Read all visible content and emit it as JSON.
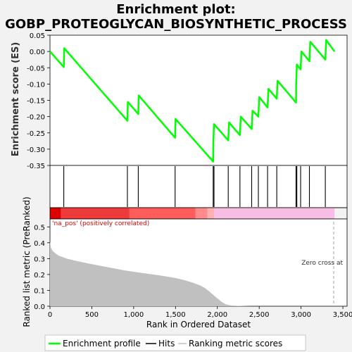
{
  "chart_data": {
    "type": "line",
    "title_lines": [
      "Enrichment plot:",
      "GOBP_PROTEOGLYCAN_BIOSYNTHETIC_PROCESS"
    ],
    "es_panel": {
      "ylabel": "Enrichment score (ES)",
      "ylim": [
        -0.35,
        0.05
      ],
      "yticks": [
        0.05,
        0.0,
        -0.05,
        -0.1,
        -0.15,
        -0.2,
        -0.25,
        -0.3,
        -0.35
      ],
      "ytick_labels": [
        "0.05",
        "0.00",
        "-0.05",
        "-0.10",
        "-0.15",
        "-0.20",
        "-0.25",
        "-0.30",
        "-0.35"
      ],
      "line_color": "#00ff00",
      "series": [
        {
          "name": "Enrichment profile",
          "x": [
            0,
            165,
            170,
            925,
            930,
            1055,
            1060,
            1495,
            1500,
            1950,
            1952,
            1960,
            2130,
            2140,
            2270,
            2280,
            2410,
            2420,
            2490,
            2500,
            2600,
            2610,
            2710,
            2720,
            2940,
            2942,
            2950,
            2995,
            3005,
            3100,
            3110,
            3290,
            3300,
            3400
          ],
          "y": [
            0.0,
            -0.048,
            0.01,
            -0.213,
            -0.155,
            -0.192,
            -0.135,
            -0.265,
            -0.207,
            -0.338,
            -0.28,
            -0.223,
            -0.273,
            -0.218,
            -0.257,
            -0.2,
            -0.238,
            -0.182,
            -0.2,
            -0.14,
            -0.172,
            -0.115,
            -0.145,
            -0.09,
            -0.157,
            -0.1,
            -0.04,
            -0.055,
            0.0,
            -0.03,
            0.03,
            -0.025,
            0.035,
            0.0
          ]
        }
      ]
    },
    "hits": [
      165,
      925,
      1055,
      1495,
      1950,
      1960,
      2130,
      2270,
      2410,
      2490,
      2600,
      2710,
      2940,
      2950,
      2995,
      3100,
      3290
    ],
    "rank_bar": {
      "segments": [
        {
          "from": 0,
          "to": 130,
          "color": "#dd0000"
        },
        {
          "from": 130,
          "to": 950,
          "color": "#ee3a3a"
        },
        {
          "from": 950,
          "to": 1740,
          "color": "#ff5c5c"
        },
        {
          "from": 1740,
          "to": 1880,
          "color": "#ff8c8c"
        },
        {
          "from": 1880,
          "to": 1960,
          "color": "#ffb0b0"
        },
        {
          "from": 1960,
          "to": 3400,
          "color": "#f8bde4"
        }
      ]
    },
    "metric_panel": {
      "ylabel": "Ranked list metric (PreRanked)",
      "ylim": [
        0.0,
        0.55
      ],
      "yticks": [
        0.0,
        0.1,
        0.2,
        0.3,
        0.4,
        0.5
      ],
      "ytick_labels": [
        "0.0",
        "0.1",
        "0.2",
        "0.3",
        "0.4",
        "0.5"
      ],
      "fill_color": "#c0c0c0",
      "x": [
        0,
        10,
        30,
        60,
        100,
        200,
        300,
        500,
        700,
        900,
        1100,
        1300,
        1500,
        1600,
        1700,
        1800,
        1850,
        1900,
        1950,
        2000,
        2050,
        2100,
        2150,
        2250,
        2400,
        3000,
        3400
      ],
      "y": [
        0.41,
        0.37,
        0.35,
        0.335,
        0.32,
        0.3,
        0.287,
        0.265,
        0.245,
        0.225,
        0.21,
        0.195,
        0.178,
        0.165,
        0.15,
        0.13,
        0.115,
        0.095,
        0.072,
        0.05,
        0.028,
        0.012,
        0.006,
        0.002,
        0.0,
        0.0,
        0.0
      ],
      "pos_label": "'na_pos' (positively correlated)",
      "pos_label_color": "#dd0000",
      "zero_cross_label": "Zero cross at",
      "zero_cross_x": 3390
    },
    "xlabel": "Rank in Ordered Dataset",
    "xlim": [
      0,
      3550
    ],
    "xticks": [
      0,
      500,
      1000,
      1500,
      2000,
      2500,
      3000,
      3500
    ],
    "xtick_labels": [
      "0",
      "500",
      "1,000",
      "1,500",
      "2,000",
      "2,500",
      "3,000",
      "3,500"
    ],
    "legend": {
      "placement": "bottom",
      "items": [
        {
          "label": "Enrichment profile",
          "color": "#00ff00"
        },
        {
          "label": "Hits",
          "color": "#000000"
        },
        {
          "label": "Ranking metric scores",
          "color": "#c0c0c0"
        }
      ]
    }
  }
}
